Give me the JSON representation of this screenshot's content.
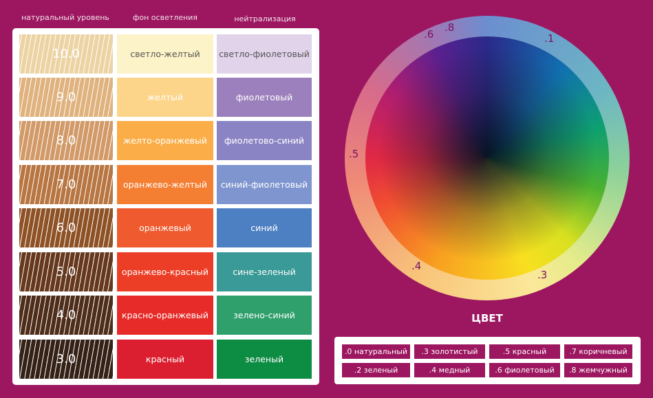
{
  "headers": [
    "натуральный уровень",
    "фон осветления",
    "нейтрализация"
  ],
  "rows": [
    {
      "level": "10.0",
      "background": "светло-желтый",
      "neutral": "светло-фиолетовый",
      "hair_color": "#ecd3a3",
      "bg_color": "#fdf3c8",
      "neutral_color": "#e0d3ea",
      "dark_text": true
    },
    {
      "level": "9.0",
      "background": "желтый",
      "neutral": "фиолетовый",
      "hair_color": "#dfb27e",
      "bg_color": "#fdd58a",
      "neutral_color": "#9c80bd"
    },
    {
      "level": "8.0",
      "background": "желто-оранжевый",
      "neutral": "фиолетово-синий",
      "hair_color": "#d19a68",
      "bg_color": "#fbae48",
      "neutral_color": "#8b84c4"
    },
    {
      "level": "7.0",
      "background": "оранжево-желтый",
      "neutral": "синий-фиолетовый",
      "hair_color": "#b87642",
      "bg_color": "#f47f33",
      "neutral_color": "#7e95cf"
    },
    {
      "level": "6.0",
      "background": "оранжевый",
      "neutral": "синий",
      "hair_color": "#8e5226",
      "bg_color": "#ef5a2e",
      "neutral_color": "#4d80c2"
    },
    {
      "level": "5.0",
      "background": "оранжево-красный",
      "neutral": "сине-зеленый",
      "hair_color": "#66391e",
      "bg_color": "#ec3e26",
      "neutral_color": "#3a9a97"
    },
    {
      "level": "4.0",
      "background": "красно-оранжевый",
      "neutral": "зелено-синий",
      "hair_color": "#4e2e1a",
      "bg_color": "#e62b28",
      "neutral_color": "#2f9f6b"
    },
    {
      "level": "3.0",
      "background": "красный",
      "neutral": "зеленый",
      "hair_color": "#352217",
      "bg_color": "#dc1f30",
      "neutral_color": "#0d8c43"
    }
  ],
  "wheel": {
    "labels": [
      ".6",
      ".8",
      ".1",
      ".5",
      ".4",
      ".3"
    ],
    "title": "ЦВЕТ"
  },
  "legend": [
    ".0 натуральный",
    ".3 золотистый",
    ".5 красный",
    ".7 коричневый",
    ".2 зеленый",
    ".4 медный",
    ".6 фиолетовый",
    ".8 жемчужный"
  ],
  "colors": {
    "background": "#9c1660",
    "accent": "#9c1660"
  }
}
